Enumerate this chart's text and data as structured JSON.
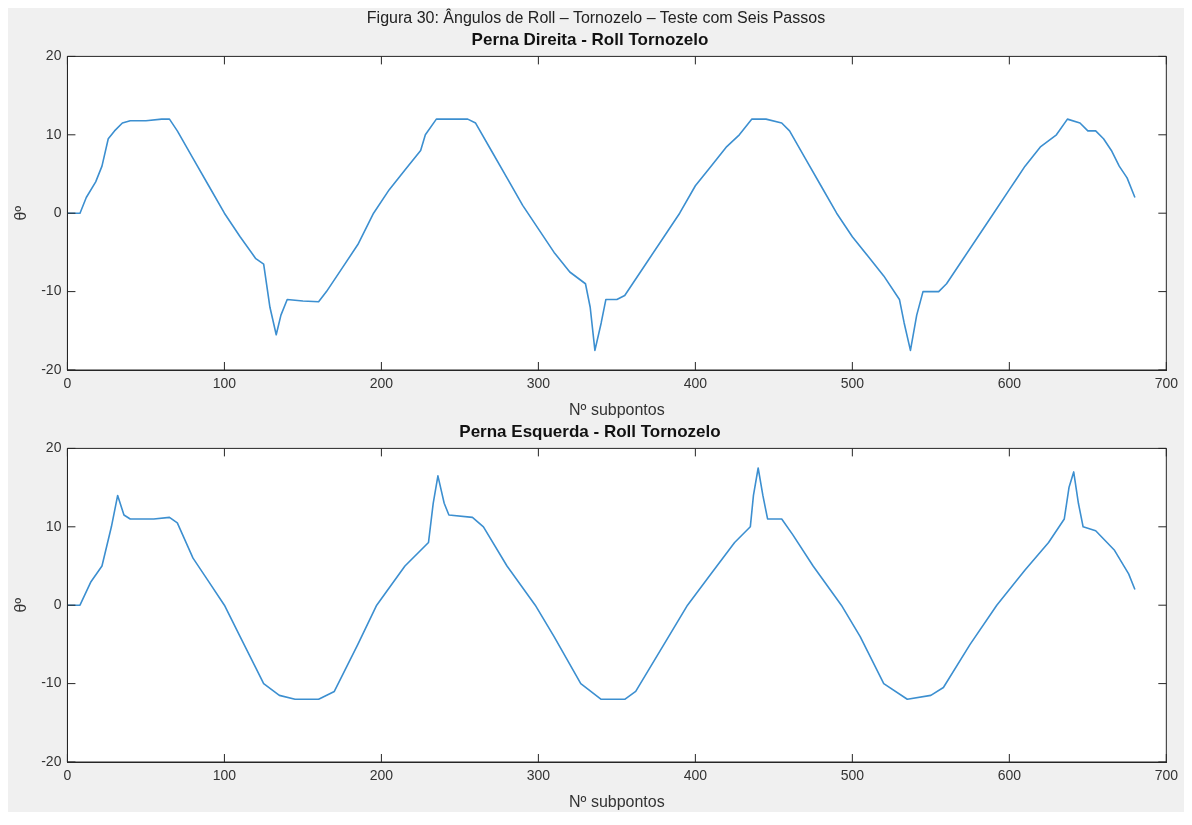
{
  "chart_data": [
    {
      "type": "line",
      "title": "Perna Direita - Roll Tornozelo",
      "annotations": [
        "Figura 30: Ângulos de Roll – Tornozelo – Teste com Seis Passos"
      ],
      "xlabel": "Nº subpontos",
      "ylabel": "θº",
      "xlim": [
        0,
        700
      ],
      "xticks": [
        0,
        100,
        200,
        300,
        400,
        500,
        600,
        700
      ],
      "ylim": [
        -20,
        20
      ],
      "yticks": [
        -20,
        -10,
        0,
        10,
        20
      ],
      "grid": false,
      "legend": false,
      "marker": "none",
      "line_style": "solid",
      "series": [
        {
          "color": "#3c8fd0",
          "x": [
            0,
            8,
            12,
            18,
            22,
            26,
            30,
            35,
            40,
            50,
            60,
            65,
            70,
            80,
            90,
            100,
            110,
            120,
            125,
            129,
            133,
            136,
            140,
            150,
            160,
            165,
            175,
            185,
            195,
            205,
            215,
            225,
            228,
            235,
            245,
            255,
            260,
            270,
            280,
            290,
            300,
            310,
            320,
            330,
            333,
            336,
            340,
            343,
            350,
            355,
            360,
            370,
            380,
            390,
            400,
            410,
            420,
            428,
            436,
            445,
            455,
            460,
            470,
            480,
            490,
            500,
            510,
            520,
            530,
            533,
            537,
            541,
            545,
            555,
            560,
            570,
            580,
            590,
            600,
            610,
            620,
            630,
            637,
            645,
            650,
            655,
            660,
            665,
            670,
            675,
            680
          ],
          "values": [
            0,
            0,
            2,
            4,
            6,
            9.5,
            10.5,
            11.5,
            11.8,
            11.8,
            12,
            12,
            10.5,
            7,
            3.5,
            0,
            -3,
            -5.8,
            -6.5,
            -12,
            -15.5,
            -13,
            -11,
            -11.2,
            -11.3,
            -10,
            -7,
            -4,
            0,
            3,
            5.5,
            8,
            10,
            12,
            12,
            12,
            11.5,
            8,
            4.5,
            1,
            -2,
            -5,
            -7.5,
            -9,
            -12,
            -17.5,
            -14,
            -11,
            -11,
            -10.5,
            -9,
            -6,
            -3,
            0,
            3.5,
            6,
            8.5,
            10,
            12,
            12,
            11.5,
            10.5,
            7,
            3.5,
            0,
            -3,
            -5.5,
            -8,
            -11,
            -14,
            -17.5,
            -13,
            -10,
            -10,
            -9,
            -6,
            -3,
            0,
            3,
            6,
            8.5,
            10,
            12,
            11.5,
            10.5,
            10.5,
            9.5,
            8,
            6,
            4.5,
            2
          ]
        }
      ]
    },
    {
      "type": "line",
      "title": "Perna Esquerda - Roll Tornozelo",
      "xlabel": "Nº subpontos",
      "ylabel": "θº",
      "xlim": [
        0,
        700
      ],
      "xticks": [
        0,
        100,
        200,
        300,
        400,
        500,
        600,
        700
      ],
      "ylim": [
        -20,
        20
      ],
      "yticks": [
        -20,
        -10,
        0,
        10,
        20
      ],
      "grid": false,
      "legend": false,
      "marker": "none",
      "line_style": "solid",
      "series": [
        {
          "color": "#3c8fd0",
          "x": [
            0,
            8,
            15,
            22,
            28,
            32,
            36,
            40,
            55,
            65,
            70,
            80,
            90,
            100,
            110,
            120,
            125,
            135,
            145,
            160,
            170,
            185,
            197,
            215,
            230,
            233,
            236,
            240,
            243,
            258,
            265,
            280,
            298,
            310,
            327,
            340,
            355,
            362,
            380,
            395,
            410,
            425,
            435,
            437,
            440,
            443,
            446,
            455,
            462,
            475,
            493,
            505,
            520,
            535,
            550,
            558,
            575,
            592,
            610,
            625,
            635,
            638,
            641,
            644,
            647,
            655,
            667,
            676,
            680
          ],
          "values": [
            0,
            0,
            3,
            5,
            10,
            14,
            11.5,
            11,
            11,
            11.2,
            10.5,
            6,
            3,
            0,
            -4,
            -8,
            -10,
            -11.5,
            -12,
            -12,
            -11,
            -5,
            0,
            5,
            8,
            13,
            16.5,
            13,
            11.5,
            11.2,
            10,
            5,
            0,
            -4,
            -10,
            -12,
            -12,
            -11,
            -5,
            0,
            4,
            8,
            10,
            14,
            17.5,
            14,
            11,
            11,
            9,
            5,
            0,
            -4,
            -10,
            -12,
            -11.5,
            -10.5,
            -5,
            0,
            4.5,
            8,
            11,
            15,
            17,
            13,
            10,
            9.5,
            7,
            4,
            2
          ]
        }
      ]
    }
  ]
}
